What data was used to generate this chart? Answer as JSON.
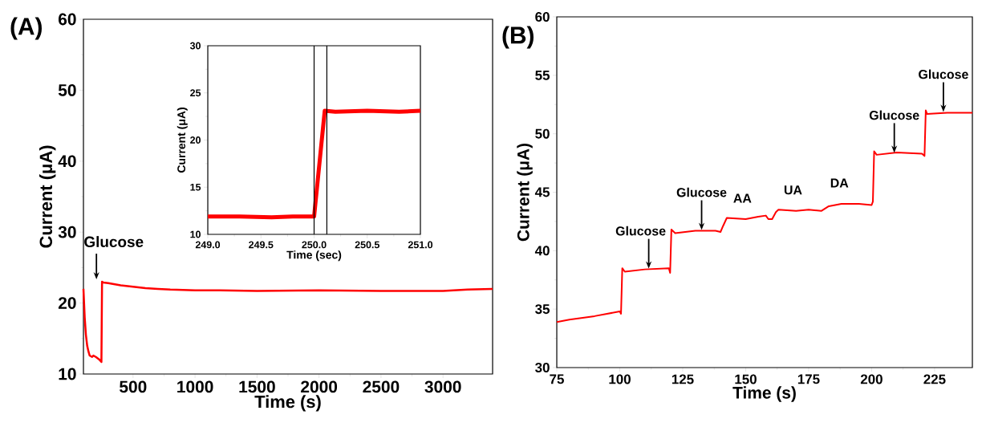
{
  "chart_data": [
    {
      "type": "line",
      "title": "(A)",
      "xlabel": "Time (s)",
      "ylabel": "Current (μA)",
      "xlim": [
        100,
        3400
      ],
      "ylim": [
        10,
        60
      ],
      "xticks": [
        500,
        1000,
        1500,
        2000,
        2500,
        3000
      ],
      "yticks": [
        10,
        20,
        30,
        40,
        50,
        60
      ],
      "x": [
        100,
        110,
        120,
        130,
        140,
        150,
        170,
        180,
        200,
        230,
        245,
        250,
        260,
        300,
        400,
        500,
        600,
        700,
        800,
        1000,
        1200,
        1500,
        2000,
        2500,
        3000,
        3200,
        3400
      ],
      "series": [
        {
          "color": "#ff0000",
          "values": [
            22.0,
            18.0,
            15.5,
            14.0,
            13.2,
            12.6,
            12.4,
            12.6,
            12.4,
            12.0,
            11.7,
            23.0,
            22.9,
            22.8,
            22.5,
            22.3,
            22.1,
            22.0,
            21.9,
            21.8,
            21.8,
            21.7,
            21.8,
            21.7,
            21.7,
            21.9,
            22.0
          ]
        }
      ],
      "annotations": [
        {
          "text": "Glucose",
          "x": 250,
          "y": 23.0
        }
      ]
    },
    {
      "type": "line",
      "xlabel": "Time (sec)",
      "ylabel": "Current (μA)",
      "xlim": [
        249,
        251
      ],
      "ylim": [
        10,
        30
      ],
      "xticks": [
        {
          "value": 249,
          "label": "249.0"
        },
        {
          "value": 249.5,
          "label": "249.5"
        },
        {
          "value": 250,
          "label": "250.0"
        },
        {
          "value": 250.5,
          "label": "250.5"
        },
        {
          "value": 251,
          "label": "251.0"
        }
      ],
      "yticks": [
        10,
        15,
        20,
        25,
        30
      ],
      "x": [
        249,
        249.3,
        249.6,
        249.8,
        250.0,
        250.1,
        250.2,
        250.5,
        250.8,
        251
      ],
      "series": [
        {
          "color": "#ff0000",
          "values": [
            11.9,
            11.9,
            11.8,
            11.9,
            11.9,
            23.1,
            23.0,
            23.1,
            23.0,
            23.1
          ]
        }
      ],
      "ref_lines": [
        {
          "axis": "x",
          "value": 250.0,
          "color": "#000000"
        },
        {
          "axis": "x",
          "value": 250.12,
          "color": "#000000"
        }
      ]
    },
    {
      "type": "line",
      "title": "(B)",
      "xlabel": "Time (s)",
      "ylabel": "Current (μA)",
      "xlim": [
        75,
        240
      ],
      "ylim": [
        30,
        60
      ],
      "xticks": [
        75,
        100,
        125,
        150,
        175,
        200,
        225
      ],
      "yticks": [
        30,
        35,
        40,
        45,
        50,
        55,
        60
      ],
      "x": [
        75,
        80,
        90,
        100,
        100.5,
        101,
        102,
        110,
        119.5,
        120,
        120.5,
        122,
        130,
        138,
        140,
        141,
        142.5,
        150,
        155,
        158,
        159,
        160.5,
        162,
        163,
        170,
        175,
        180,
        183,
        188,
        195,
        200,
        200.5,
        201,
        202,
        210,
        220,
        221,
        221.5,
        222,
        230,
        235,
        240
      ],
      "series": [
        {
          "color": "#ff0000",
          "values": [
            33.9,
            34.1,
            34.4,
            34.8,
            34.6,
            38.5,
            38.2,
            38.4,
            38.5,
            38.1,
            41.8,
            41.5,
            41.7,
            41.7,
            41.6,
            42.1,
            42.8,
            42.7,
            42.9,
            43.0,
            42.7,
            42.7,
            43.3,
            43.5,
            43.4,
            43.5,
            43.4,
            43.8,
            44.0,
            44.0,
            43.9,
            44.2,
            48.5,
            48.2,
            48.4,
            48.3,
            48.1,
            52.0,
            51.7,
            51.8,
            51.8,
            51.8
          ]
        }
      ],
      "annotations": [
        {
          "text": "Glucose",
          "x": 111.5,
          "y": 38.4
        },
        {
          "text": "Glucose",
          "x": 132.5,
          "y": 41.7
        },
        {
          "text": "AA",
          "x": 148.7,
          "y": 42.7
        },
        {
          "text": "UA",
          "x": 168.8,
          "y": 43.4
        },
        {
          "text": "DA",
          "x": 187.2,
          "y": 44.0
        },
        {
          "text": "Glucose",
          "x": 209,
          "y": 48.3
        },
        {
          "text": "Glucose",
          "x": 228.5,
          "y": 51.8
        }
      ]
    }
  ]
}
